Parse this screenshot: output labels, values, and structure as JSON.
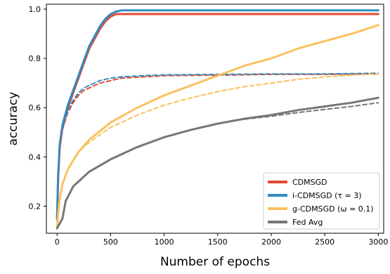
{
  "chart_data": {
    "type": "line",
    "title": "",
    "xlabel": "Number of epochs",
    "ylabel": "accuracy",
    "xlim": [
      -100,
      3050
    ],
    "ylim": [
      0.09,
      1.02
    ],
    "xticks": [
      0,
      500,
      1000,
      1500,
      2000,
      2500,
      3000
    ],
    "yticks": [
      0.2,
      0.4,
      0.6,
      0.8,
      1.0
    ],
    "xtick_labels": [
      "0",
      "500",
      "1000",
      "1500",
      "2000",
      "2500",
      "3000"
    ],
    "ytick_labels": [
      "0.2",
      "0.4",
      "0.6",
      "0.8",
      "1.0"
    ],
    "grid": false,
    "legend_position": "bottom-right",
    "colors": {
      "CDMSGD": "#e24a33",
      "i-CDMSGD": "#348abd",
      "g-CDMSGD": "#fbc15e",
      "FedAvg": "#777777"
    },
    "legend": [
      {
        "label": "CDMSGD",
        "color": "#e24a33"
      },
      {
        "label": "i-CDMSGD (τ = 3)",
        "color": "#348abd"
      },
      {
        "label": "g-CDMSGD (ω = 0.1)",
        "color": "#fbc15e"
      },
      {
        "label": "Fed Avg",
        "color": "#777777"
      }
    ],
    "series": [
      {
        "name": "CDMSGD",
        "role": "train",
        "style": "solid",
        "color": "#e24a33",
        "x": [
          0,
          10,
          25,
          50,
          100,
          150,
          200,
          250,
          300,
          350,
          400,
          450,
          500,
          550,
          600,
          700,
          800,
          1000,
          1500,
          2000,
          2500,
          3000
        ],
        "y": [
          0.15,
          0.32,
          0.44,
          0.52,
          0.6,
          0.66,
          0.72,
          0.78,
          0.84,
          0.88,
          0.92,
          0.95,
          0.97,
          0.98,
          0.98,
          0.98,
          0.98,
          0.98,
          0.98,
          0.98,
          0.98,
          0.98
        ]
      },
      {
        "name": "i-CDMSGD",
        "role": "train",
        "style": "solid",
        "color": "#348abd",
        "x": [
          0,
          10,
          25,
          50,
          100,
          150,
          200,
          250,
          300,
          350,
          400,
          450,
          500,
          550,
          600,
          700,
          800,
          1000,
          1500,
          2000,
          2500,
          3000
        ],
        "y": [
          0.15,
          0.33,
          0.45,
          0.53,
          0.61,
          0.67,
          0.73,
          0.79,
          0.85,
          0.89,
          0.93,
          0.96,
          0.98,
          0.99,
          0.995,
          0.995,
          0.995,
          0.995,
          0.995,
          0.995,
          0.995,
          0.995
        ]
      },
      {
        "name": "CDMSGD",
        "role": "test",
        "style": "dashed",
        "color": "#e24a33",
        "x": [
          0,
          10,
          25,
          50,
          100,
          150,
          200,
          250,
          300,
          400,
          500,
          600,
          800,
          1000,
          1500,
          2000,
          2500,
          3000
        ],
        "y": [
          0.14,
          0.33,
          0.44,
          0.51,
          0.58,
          0.62,
          0.65,
          0.67,
          0.68,
          0.7,
          0.71,
          0.72,
          0.725,
          0.73,
          0.732,
          0.735,
          0.735,
          0.737
        ]
      },
      {
        "name": "i-CDMSGD",
        "role": "test",
        "style": "dashed",
        "color": "#348abd",
        "x": [
          0,
          10,
          25,
          50,
          100,
          150,
          200,
          250,
          300,
          400,
          500,
          600,
          800,
          1000,
          1500,
          2000,
          2500,
          3000
        ],
        "y": [
          0.14,
          0.34,
          0.45,
          0.52,
          0.59,
          0.63,
          0.66,
          0.68,
          0.69,
          0.71,
          0.72,
          0.725,
          0.73,
          0.733,
          0.735,
          0.737,
          0.737,
          0.74
        ]
      },
      {
        "name": "g-CDMSGD",
        "role": "train",
        "style": "solid",
        "color": "#fbc15e",
        "x": [
          0,
          10,
          25,
          50,
          100,
          200,
          300,
          500,
          750,
          1000,
          1250,
          1500,
          1750,
          2000,
          2250,
          2500,
          2750,
          3000
        ],
        "y": [
          0.11,
          0.17,
          0.23,
          0.29,
          0.35,
          0.42,
          0.47,
          0.54,
          0.6,
          0.65,
          0.69,
          0.73,
          0.77,
          0.8,
          0.84,
          0.87,
          0.9,
          0.935
        ]
      },
      {
        "name": "g-CDMSGD",
        "role": "test",
        "style": "dashed",
        "color": "#fbc15e",
        "x": [
          0,
          10,
          25,
          50,
          100,
          200,
          300,
          500,
          750,
          1000,
          1250,
          1500,
          1750,
          2000,
          2250,
          2500,
          2750,
          3000
        ],
        "y": [
          0.11,
          0.17,
          0.23,
          0.29,
          0.35,
          0.42,
          0.46,
          0.52,
          0.57,
          0.61,
          0.64,
          0.665,
          0.685,
          0.7,
          0.715,
          0.725,
          0.732,
          0.738
        ]
      },
      {
        "name": "Fed Avg",
        "role": "train",
        "style": "solid",
        "color": "#777777",
        "x": [
          0,
          50,
          80,
          150,
          200,
          300,
          500,
          750,
          1000,
          1250,
          1500,
          1750,
          2000,
          2250,
          2500,
          2750,
          3000
        ],
        "y": [
          0.11,
          0.15,
          0.22,
          0.28,
          0.3,
          0.34,
          0.39,
          0.44,
          0.48,
          0.51,
          0.535,
          0.555,
          0.57,
          0.59,
          0.605,
          0.62,
          0.64
        ]
      },
      {
        "name": "Fed Avg",
        "role": "test",
        "style": "dashed",
        "color": "#777777",
        "x": [
          0,
          50,
          80,
          150,
          200,
          300,
          500,
          750,
          1000,
          1250,
          1500,
          1750,
          2000,
          2250,
          2500,
          2750,
          3000
        ],
        "y": [
          0.11,
          0.15,
          0.22,
          0.28,
          0.3,
          0.34,
          0.39,
          0.44,
          0.48,
          0.51,
          0.535,
          0.553,
          0.565,
          0.58,
          0.593,
          0.605,
          0.62
        ]
      }
    ]
  }
}
